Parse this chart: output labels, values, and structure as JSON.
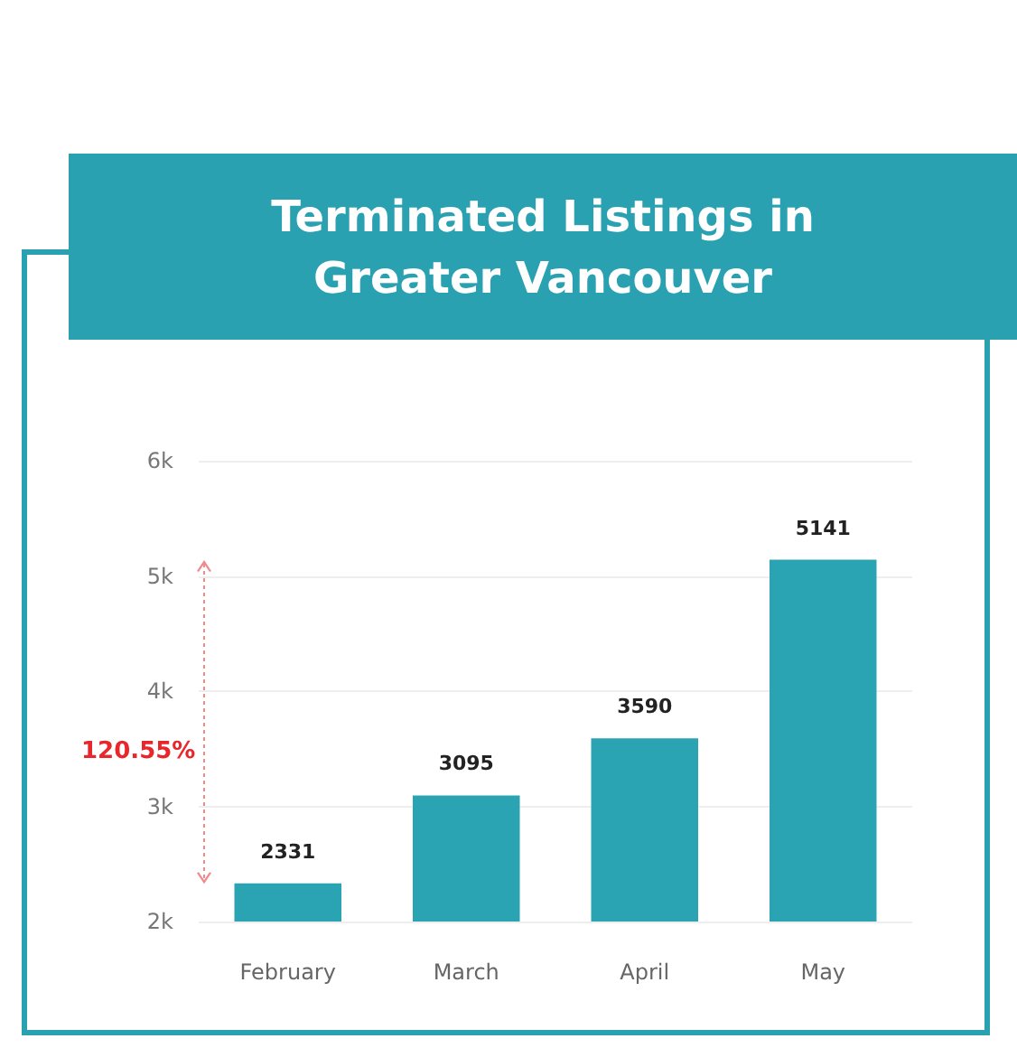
{
  "chart_data": {
    "type": "bar",
    "title": "Terminated Listings in Greater Vancouver",
    "categories": [
      "February",
      "March",
      "April",
      "May"
    ],
    "values": [
      2331,
      3095,
      3590,
      5141
    ],
    "color": "#2aa3b2",
    "ylim": [
      2000,
      6000
    ],
    "yticks": [
      {
        "value": 2000,
        "label": "2k"
      },
      {
        "value": 3000,
        "label": "3k"
      },
      {
        "value": 4000,
        "label": "4k"
      },
      {
        "value": 5000,
        "label": "5k"
      },
      {
        "value": 6000,
        "label": "6k"
      }
    ],
    "grid": "y",
    "data_labels": true,
    "annotations": [
      "120.55%"
    ]
  }
}
